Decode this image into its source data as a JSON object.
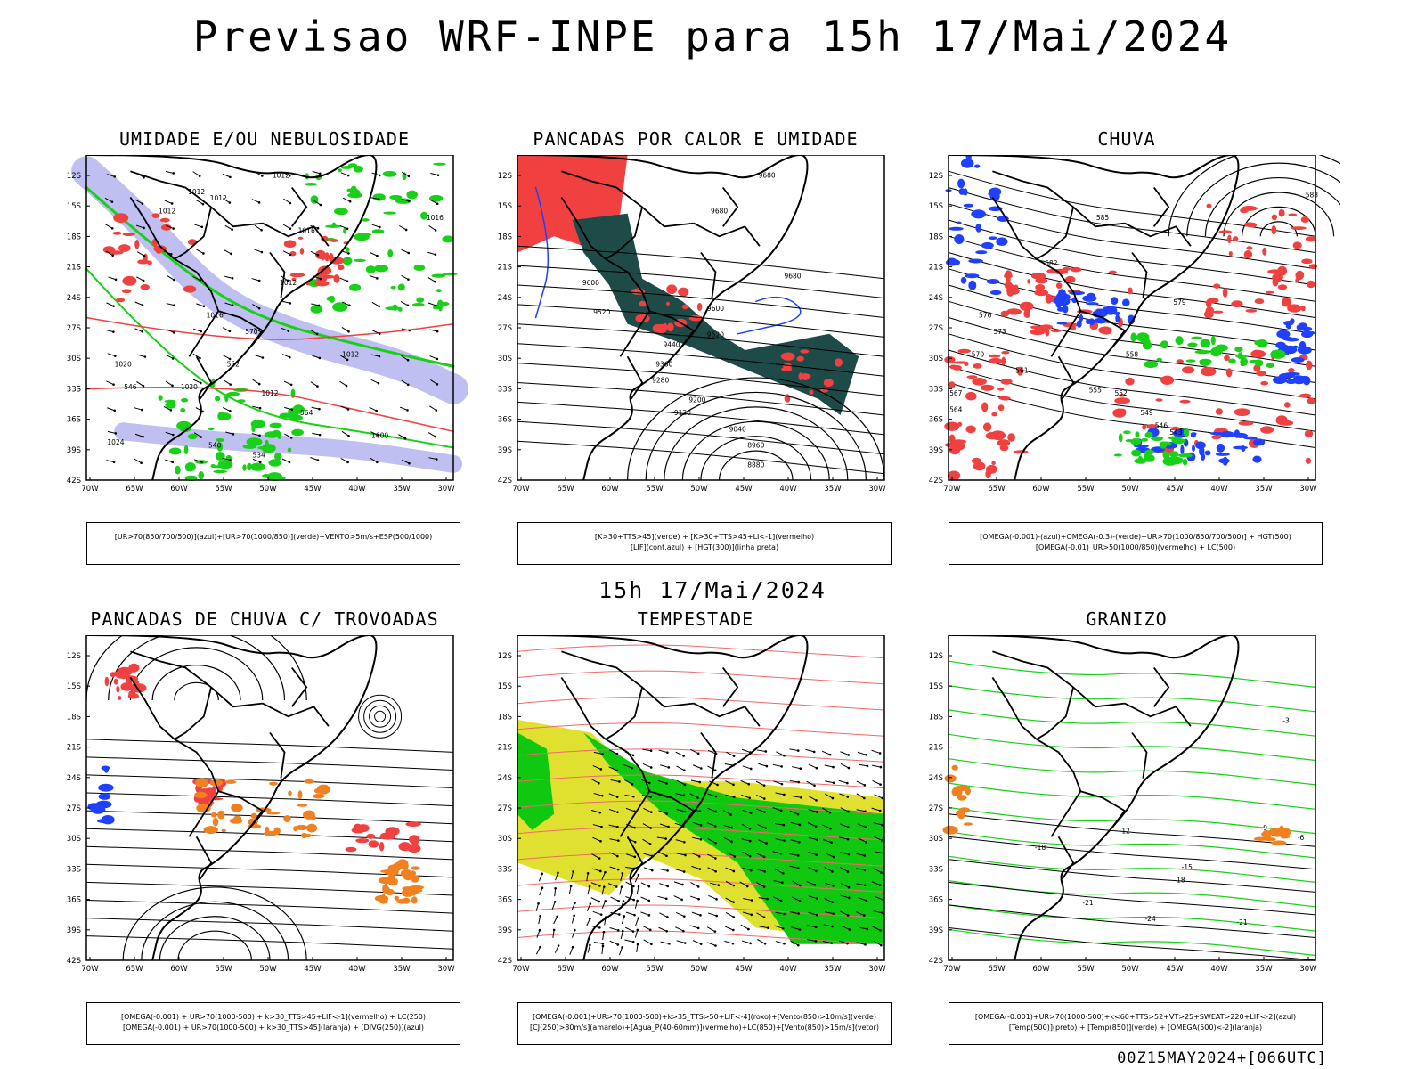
{
  "header": {
    "title": "Previsao WRF-INPE  para 15h 17/Mai/2024"
  },
  "mid_label": "15h 17/Mai/2024",
  "footer_label": "00Z15MAY2024+[066UTC]",
  "axes": {
    "lat_labels": [
      "12S",
      "15S",
      "18S",
      "21S",
      "24S",
      "27S",
      "30S",
      "33S",
      "36S",
      "39S",
      "42S"
    ],
    "lon_labels": [
      "70W",
      "65W",
      "60W",
      "55W",
      "50W",
      "45W",
      "40W",
      "35W",
      "30W"
    ]
  },
  "panels": [
    {
      "id": "umidade",
      "title": "UMIDADE E/OU NEBULOSIDADE",
      "caption": [
        "[UR>70(850/700/500)](azul)+[UR>70(1000/850)](verde)+VENTO>5m/s+ESP(500/1000)"
      ],
      "contour_labels": [
        "1012",
        "1012",
        "1012",
        "1016",
        "1016",
        "1012",
        "1012",
        "1016",
        "1020",
        "1020",
        "1012",
        "1012",
        "1024",
        "1000",
        "552",
        "570",
        "546",
        "540",
        "534",
        "564"
      ]
    },
    {
      "id": "pancadas-calor",
      "title": "PANCADAS POR CALOR E UMIDADE",
      "caption": [
        "[K>30+TTS>45](verde) + [K>30+TTS>45+LI<-1](vermelho)",
        "[LIF](cont.azul) + [HGT(300)](linha preta)"
      ],
      "contour_labels": [
        "9680",
        "9680",
        "9600",
        "9520",
        "9440",
        "9360",
        "9280",
        "9200",
        "9120",
        "9040",
        "8960",
        "8880",
        "9680",
        "9600",
        "9520"
      ]
    },
    {
      "id": "chuva",
      "title": "CHUVA",
      "caption": [
        "[OMEGA(-0.001)-(azul)+OMEGA(-0.3)-(verde)+UR>70(1000/850/700/500)] + HGT(500)",
        "[OMEGA(-0.01)_UR>50(1000/850)(vermelho) + LC(500)"
      ],
      "contour_labels": [
        "588",
        "585",
        "582",
        "579",
        "576",
        "573",
        "570",
        "567",
        "564",
        "561",
        "558",
        "555",
        "552",
        "549",
        "546",
        "543"
      ]
    },
    {
      "id": "pancadas-trovoadas",
      "title": "PANCADAS DE CHUVA C/ TROVOADAS",
      "caption": [
        "[OMEGA(-0.001) + UR>70(1000-500) + k>30_TTS>45+LIF<-1](vermelho) + LC(250)",
        "[OMEGA(-0.001) + UR>70(1000-500) + k>30_TTS>45](laranja) + [DIVG(250)](azul)"
      ],
      "contour_labels": []
    },
    {
      "id": "tempestade",
      "title": "TEMPESTADE",
      "caption": [
        "[OMEGA(-0.001)+UR>70(1000-500)+k>35_TTS>50+LIF<-4](roxo)+[Vento(850)>10m/s](verde)",
        "[CJ(250)>30m/s](amarelo)+[Agua_P(40-60mm)](vermelho)+LC(850)+[Vento(850)>15m/s](vetor)"
      ],
      "contour_labels": []
    },
    {
      "id": "granizo",
      "title": "GRANIZO",
      "caption": [
        "[OMEGA(-0.001)+UR>70(1000-500)+k<60+TTS>52+VT>25+SWEAT>220+LIF<-2](azul)",
        "[Temp(500)](preto) + [Temp(850)](verde) + [OMEGA(500)<-2](laranja)"
      ],
      "contour_labels": [
        "-3",
        "-12",
        "-15",
        "-18",
        "-21",
        "-24",
        "-21",
        "-9",
        "-6",
        "-18"
      ]
    }
  ],
  "colors": {
    "blue": "#2040ff",
    "lavender": "#b8b8f0",
    "green": "#18d018",
    "red": "#f04040",
    "orange": "#f08020",
    "teal": "#1e4a48",
    "yellow": "#e0e030",
    "bright_green": "#10c810",
    "light_red": "#f06a6a"
  }
}
